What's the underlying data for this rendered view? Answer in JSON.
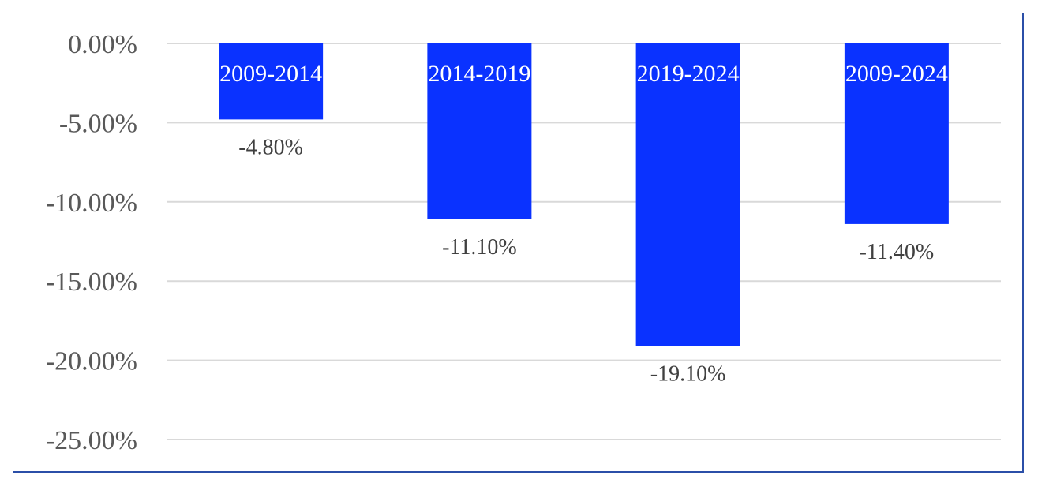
{
  "chart_data": {
    "type": "bar",
    "categories": [
      "2009-2014",
      "2014-2019",
      "2019-2024",
      "2009-2024"
    ],
    "values": [
      -4.8,
      -11.1,
      -19.1,
      -11.4
    ],
    "data_labels": [
      "-4.80%",
      "-11.10%",
      "-19.10%",
      "-11.40%"
    ],
    "title": "",
    "xlabel": "",
    "ylabel": "",
    "ylim": [
      -25,
      0
    ],
    "yticks": [
      0,
      -5,
      -10,
      -15,
      -20,
      -25
    ],
    "ytick_labels": [
      "0.00%",
      "-5.00%",
      "-10.00%",
      "-15.00%",
      "-20.00%",
      "-25.00%"
    ],
    "grid": true,
    "legend": "none",
    "bar_color": "#0a32ff",
    "category_label_color": "#ffffff",
    "grid_color": "#d9d9d9"
  }
}
